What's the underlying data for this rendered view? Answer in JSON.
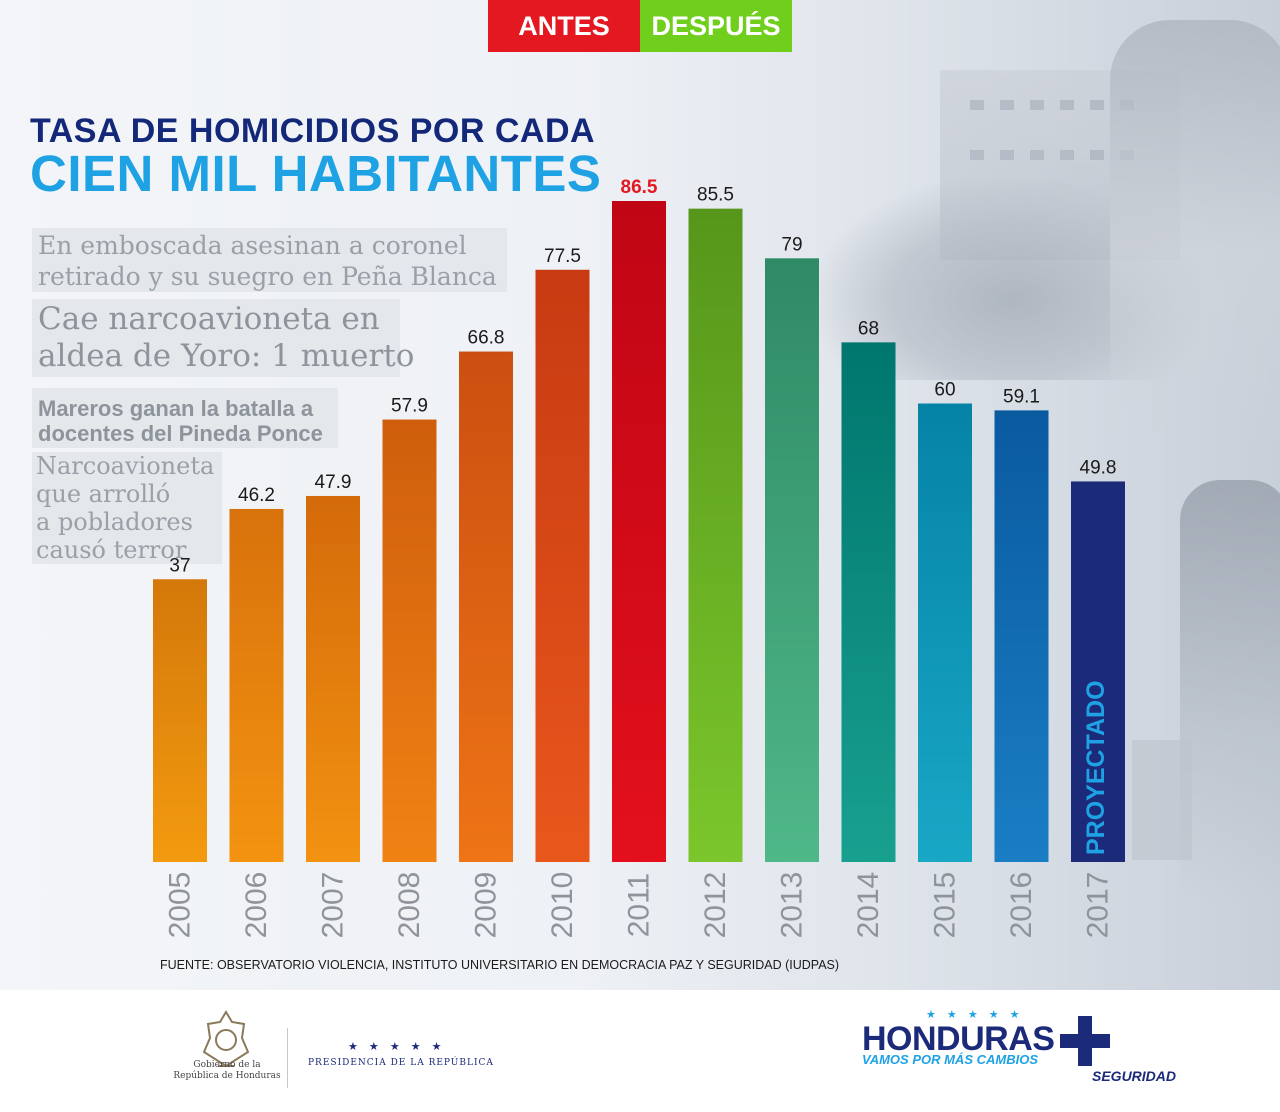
{
  "header": {
    "antes_label": "ANTES",
    "despues_label": "DESPUÉS",
    "antes_color": "#e31820",
    "despues_color": "#6fcf1c"
  },
  "title": {
    "line1": "TASA DE HOMICIDIOS POR CADA",
    "line2": "CIEN MIL HABITANTES"
  },
  "headlines": {
    "h1_line1": "En emboscada asesinan a coronel",
    "h1_line2": "retirado y su suegro en Peña Blanca",
    "h2_line1": "Cae narcoavioneta en",
    "h2_line2": "aldea de Yoro: 1 muerto",
    "h3_line1": "Mareros ganan la batalla a",
    "h3_line2": "docentes del Pineda Ponce",
    "h4_line1": "Narcoavioneta",
    "h4_line2": "que arrolló",
    "h4_line3": "a pobladores",
    "h4_line4": "causó terror"
  },
  "chart_data": {
    "type": "bar",
    "title": "TASA DE HOMICIDIOS POR CADA CIEN MIL HABITANTES",
    "xlabel": "",
    "ylabel": "",
    "ylim": [
      0,
      86.5
    ],
    "categories": [
      "2005",
      "2006",
      "2007",
      "2008",
      "2009",
      "2010",
      "2011",
      "2012",
      "2013",
      "2014",
      "2015",
      "2016",
      "2017"
    ],
    "values": [
      37,
      46.2,
      47.9,
      57.9,
      66.8,
      77.5,
      86.5,
      85.5,
      79,
      68,
      60,
      59.1,
      49.8
    ],
    "value_labels": [
      "37",
      "46.2",
      "47.9",
      "57.9",
      "66.8",
      "77.5",
      "86.5",
      "85.5",
      "79",
      "68",
      "60",
      "59.1",
      "49.8"
    ],
    "colors": [
      [
        "#d4780a",
        "#f39a0f"
      ],
      [
        "#d8720c",
        "#f39310"
      ],
      [
        "#d46a0a",
        "#f29211"
      ],
      [
        "#cf5e0c",
        "#f08214"
      ],
      [
        "#cb4f10",
        "#ee7416"
      ],
      [
        "#c73a12",
        "#e9571c"
      ],
      [
        "#c00514",
        "#e3101c"
      ],
      [
        "#56961a",
        "#7bc62c"
      ],
      [
        "#2f8a66",
        "#4fb889"
      ],
      [
        "#00766e",
        "#18a08f"
      ],
      [
        "#0583a6",
        "#19a7c6"
      ],
      [
        "#0a5aa0",
        "#1a7ec4"
      ],
      [
        "#1c2a7a",
        "#1c2a7a"
      ]
    ],
    "highlight_label_color": "#e31820",
    "annotation": "PROYECTADO",
    "annotation_color": "#1fa2e4"
  },
  "source": "FUENTE: OBSERVATORIO VIOLENCIA, INSTITUTO UNIVERSITARIO EN DEMOCRACIA PAZ Y SEGURIDAD (IUDPAS)",
  "footer": {
    "gov_line1": "Gobierno de la",
    "gov_line2": "República de Honduras",
    "pres_stars": "★ ★ ★ ★ ★",
    "pres_label": "PRESIDENCIA DE LA REPÚBLICA",
    "brand_stars": "★ ★ ★ ★ ★",
    "brand_title": "HONDURAS",
    "brand_slogan": "VAMOS POR MÁS CAMBIOS",
    "brand_tag": "SEGURIDAD",
    "brand_color": "#1c2a7a",
    "brand_accent": "#1fa2e4"
  }
}
